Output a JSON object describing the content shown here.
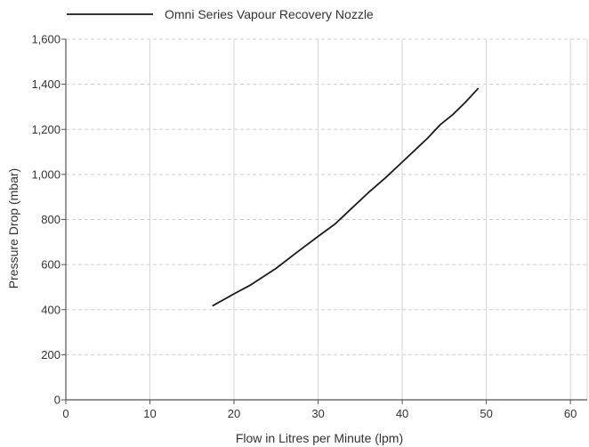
{
  "chart_data": {
    "type": "line",
    "title": "",
    "xlabel": "Flow in Litres per Minute (lpm)",
    "ylabel": "Pressure Drop (mbar)",
    "xlim": [
      0,
      62
    ],
    "ylim": [
      0,
      1600
    ],
    "x_ticks": [
      0,
      10,
      20,
      30,
      40,
      50,
      60
    ],
    "x_tick_labels": [
      "0",
      "10",
      "20",
      "30",
      "40",
      "50",
      "60"
    ],
    "y_ticks": [
      0,
      200,
      400,
      600,
      800,
      1000,
      1200,
      1400,
      1600
    ],
    "y_tick_labels": [
      "0",
      "200",
      "400",
      "600",
      "800",
      "1,000",
      "1,200",
      "1,400",
      "1,600"
    ],
    "grid": {
      "x": "solid-light",
      "y": "dashed-light"
    },
    "legend_position": "top-left",
    "series": [
      {
        "name": "Omni Series Vapour Recovery Nozzle",
        "color": "#1a1a1a",
        "x": [
          17.5,
          20,
          22,
          25,
          27.5,
          30,
          32,
          34,
          36,
          38,
          40,
          42,
          43,
          44.5,
          46,
          47.5,
          49
        ],
        "y": [
          418,
          470,
          510,
          583,
          655,
          725,
          780,
          850,
          920,
          985,
          1055,
          1125,
          1160,
          1220,
          1265,
          1320,
          1380
        ]
      }
    ]
  }
}
